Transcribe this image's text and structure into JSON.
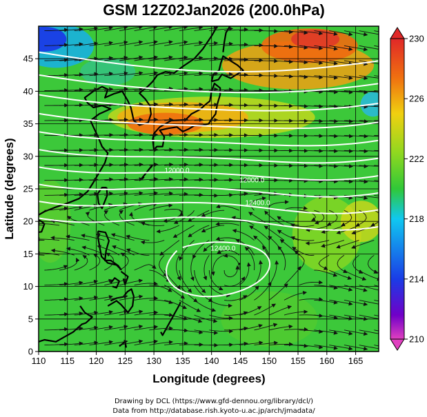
{
  "chart_data": {
    "type": "heatmap",
    "title": "GSM 12Z02Jan2026 (200.0hPa)",
    "xlabel": "Longitude (degrees)",
    "ylabel": "Latitude  (degrees)",
    "xlim": [
      110,
      169
    ],
    "ylim": [
      0,
      50
    ],
    "x_ticks": [
      110,
      115,
      120,
      125,
      130,
      135,
      140,
      145,
      150,
      155,
      160,
      165
    ],
    "y_ticks": [
      0,
      5,
      10,
      15,
      20,
      25,
      30,
      35,
      40,
      45
    ],
    "colorbar": {
      "variable": "temperature",
      "min": 210,
      "max": 230,
      "ticks": [
        210,
        214,
        218,
        222,
        226,
        230
      ],
      "colors": [
        "#e040c0",
        "#7000c8",
        "#1a3ce6",
        "#10c8f0",
        "#30c838",
        "#90d820",
        "#f0d010",
        "#f07010",
        "#e02828"
      ]
    },
    "contour_labels": [
      "12000.0",
      "12000.0",
      "12400.0",
      "12400.0"
    ],
    "contour_levels": [
      11500,
      11600,
      11700,
      11800,
      11900,
      12000,
      12100,
      12200,
      12300,
      12400
    ],
    "features": [
      "temperature shading",
      "wind streamlines",
      "geopotential height contours",
      "coastlines",
      "1-degree grid"
    ]
  },
  "credits": {
    "line1": "Drawing by DCL (https://www.gfd-dennou.org/library/dcl/)",
    "line2": "Data from http://database.rish.kyoto-u.ac.jp/arch/jmadata/"
  }
}
